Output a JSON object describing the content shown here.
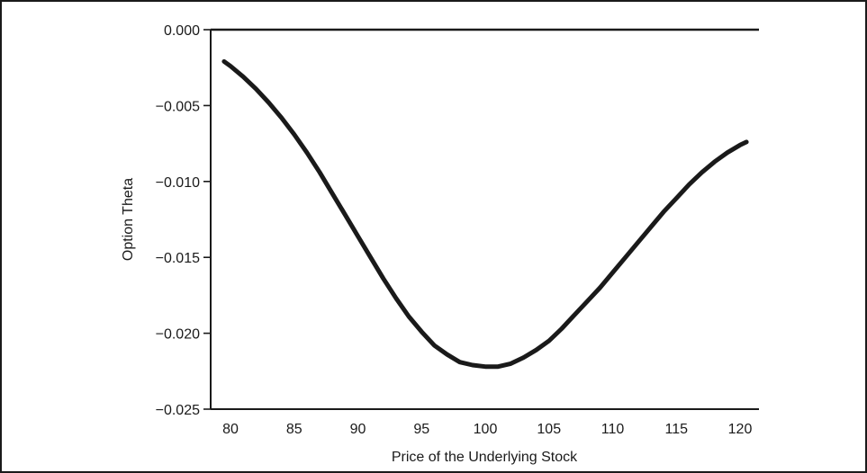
{
  "chart_data": {
    "type": "line",
    "title": "",
    "xlabel": "Price of the Underlying Stock",
    "ylabel": "Option Theta",
    "xlim": [
      79,
      121
    ],
    "ylim": [
      -0.025,
      0.0
    ],
    "x_ticks": [
      80,
      85,
      90,
      95,
      100,
      105,
      110,
      115,
      120
    ],
    "x_tick_labels": [
      "80",
      "85",
      "90",
      "95",
      "100",
      "105",
      "110",
      "115",
      "120"
    ],
    "y_ticks": [
      0.0,
      -0.005,
      -0.01,
      -0.015,
      -0.02,
      -0.025
    ],
    "y_tick_labels": [
      "0.000",
      "−0.005",
      "−0.010",
      "−0.015",
      "−0.020",
      "−0.025"
    ],
    "grid": false,
    "reference_line": {
      "y": 0.0,
      "x_from": 79,
      "x_to": 120.5
    },
    "series": [
      {
        "x": [
          79.5,
          80,
          81,
          82,
          83,
          84,
          85,
          86,
          87,
          88,
          89,
          90,
          91,
          92,
          93,
          94,
          95,
          96,
          97,
          98,
          99,
          100,
          101,
          102,
          103,
          104,
          105,
          106,
          107,
          108,
          109,
          110,
          111,
          112,
          113,
          114,
          115,
          116,
          117,
          118,
          119,
          120,
          120.5
        ],
        "y": [
          -0.0021,
          -0.0024,
          -0.0031,
          -0.0039,
          -0.0048,
          -0.0058,
          -0.0069,
          -0.0081,
          -0.0094,
          -0.0108,
          -0.0122,
          -0.0136,
          -0.015,
          -0.0164,
          -0.0177,
          -0.0189,
          -0.0199,
          -0.0208,
          -0.0214,
          -0.0219,
          -0.0221,
          -0.0222,
          -0.0222,
          -0.022,
          -0.0216,
          -0.0211,
          -0.0205,
          -0.0197,
          -0.0188,
          -0.0179,
          -0.017,
          -0.016,
          -0.015,
          -0.014,
          -0.013,
          -0.012,
          -0.0111,
          -0.0102,
          -0.0094,
          -0.0087,
          -0.0081,
          -0.0076,
          -0.0074
        ]
      }
    ]
  }
}
